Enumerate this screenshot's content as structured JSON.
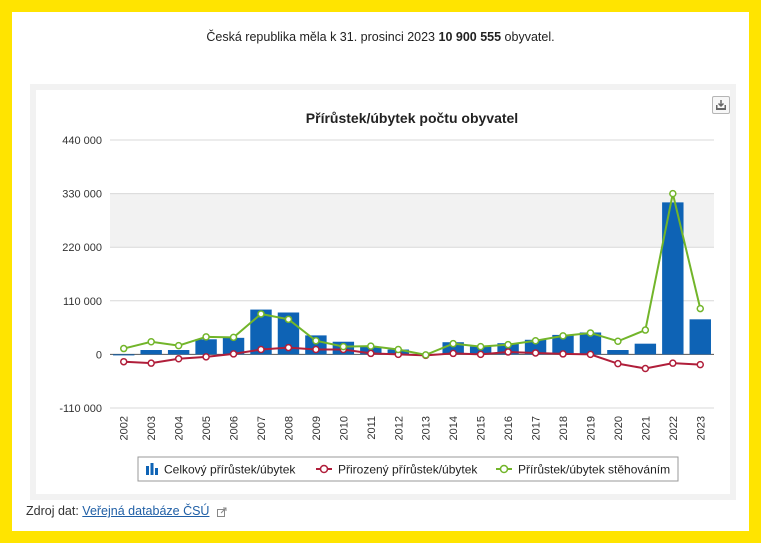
{
  "summary": {
    "prefix": "Česká republika měla k 31. prosinci 2023",
    "population": "10 900 555",
    "suffix": "obyvatel."
  },
  "source": {
    "label": "Zdroj dat:",
    "link_text": "Veřejná databáze ČSÚ"
  },
  "icons": {
    "export": "download-icon",
    "external": "external-link-icon"
  },
  "colors": {
    "bar": "#0e63b5",
    "natural": "#b01e3a",
    "migration": "#72b52a",
    "band": "#f2f2f2",
    "frame": "#ffe400"
  },
  "chart_data": {
    "type": "bar",
    "title": "Přírůstek/úbytek počtu obyvatel",
    "xlabel": "",
    "ylabel": "",
    "ylim": [
      -110000,
      440000
    ],
    "yticks": [
      -110000,
      0,
      110000,
      220000,
      330000,
      440000
    ],
    "ytick_labels": [
      "-110 000",
      "0",
      "110 000",
      "220 000",
      "330 000",
      "440 000"
    ],
    "grid": true,
    "legend_position": "bottom",
    "categories": [
      "2002",
      "2003",
      "2004",
      "2005",
      "2006",
      "2007",
      "2008",
      "2009",
      "2010",
      "2011",
      "2012",
      "2013",
      "2014",
      "2015",
      "2016",
      "2017",
      "2018",
      "2019",
      "2020",
      "2021",
      "2022",
      "2023"
    ],
    "series": [
      {
        "name": "Celkový přírůstek/úbytek",
        "type": "bar",
        "values": [
          -2000,
          9000,
          9000,
          31000,
          34000,
          92000,
          86000,
          39000,
          26000,
          16000,
          10000,
          -1000,
          25000,
          16000,
          23000,
          30000,
          40000,
          45000,
          9000,
          22000,
          312000,
          72000
        ]
      },
      {
        "name": "Přirozený přírůstek/úbytek",
        "type": "line",
        "values": [
          -15000,
          -18000,
          -9000,
          -5000,
          1000,
          10000,
          14000,
          10000,
          10000,
          2000,
          0,
          -2000,
          2000,
          0,
          5000,
          3000,
          1000,
          0,
          -19000,
          -29000,
          -18000,
          -21000
        ]
      },
      {
        "name": "Přírůstek/úbytek stěhováním",
        "type": "line",
        "values": [
          12000,
          26000,
          18000,
          36000,
          35000,
          83000,
          72000,
          28000,
          16000,
          17000,
          10000,
          -1000,
          22000,
          16000,
          20000,
          28000,
          38000,
          44000,
          27000,
          50000,
          330000,
          94000
        ]
      }
    ]
  }
}
